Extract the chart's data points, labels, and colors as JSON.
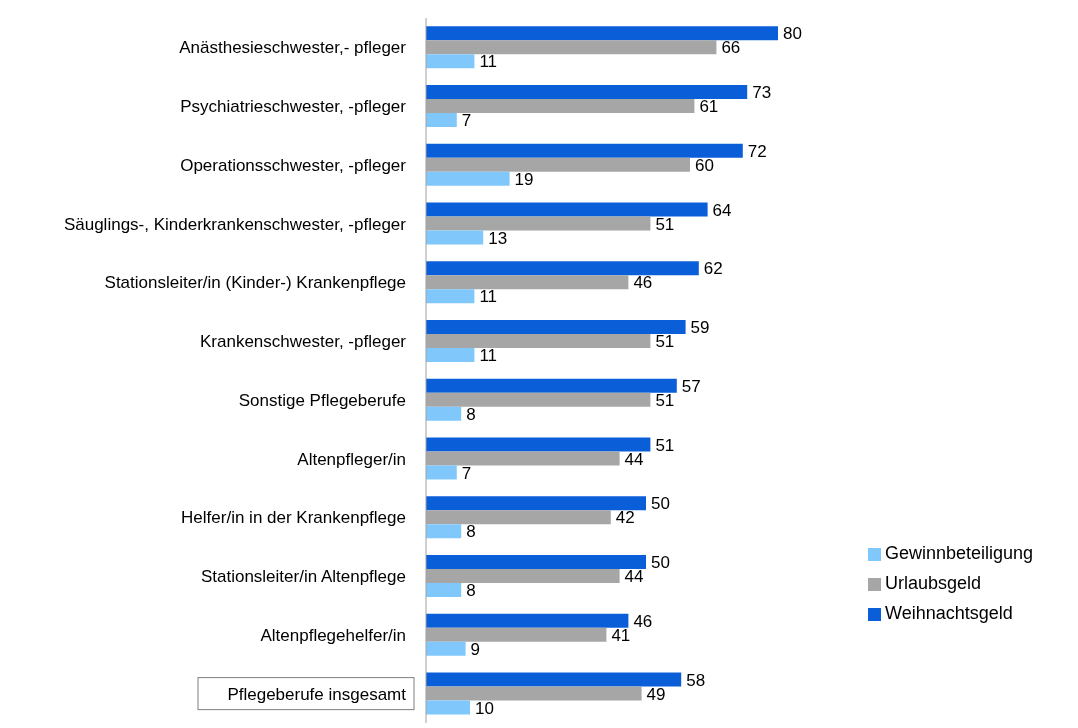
{
  "chart_data": {
    "type": "bar",
    "orientation": "horizontal",
    "categories": [
      "Anästhesieschwester,- pfleger",
      "Psychiatrieschwester, -pfleger",
      "Operationsschwester, -pfleger",
      "Säuglings-, Kinderkrankenschwester, -pfleger",
      "Stationsleiter/in (Kinder-) Krankenpflege",
      "Krankenschwester, -pfleger",
      "Sonstige Pflegeberufe",
      "Altenpfleger/in",
      "Helfer/in in der Krankenpflege",
      "Stationsleiter/in Altenpflege",
      "Altenpflegehelfer/in",
      "Pflegeberufe insgesamt"
    ],
    "series": [
      {
        "name": "Weihnachtsgeld",
        "color": "#0a5fd8",
        "values": [
          80,
          73,
          72,
          64,
          62,
          59,
          57,
          51,
          50,
          50,
          46,
          58
        ]
      },
      {
        "name": "Urlaubsgeld",
        "color": "#a6a6a6",
        "values": [
          66,
          61,
          60,
          51,
          46,
          51,
          51,
          44,
          42,
          44,
          41,
          49
        ]
      },
      {
        "name": "Gewinnbeteiligung",
        "color": "#80c8fb",
        "values": [
          11,
          7,
          19,
          13,
          11,
          11,
          8,
          7,
          8,
          8,
          9,
          10
        ]
      }
    ],
    "data_labels": true,
    "legend": "bottom right",
    "grid": false,
    "tick_labels": "y"
  }
}
